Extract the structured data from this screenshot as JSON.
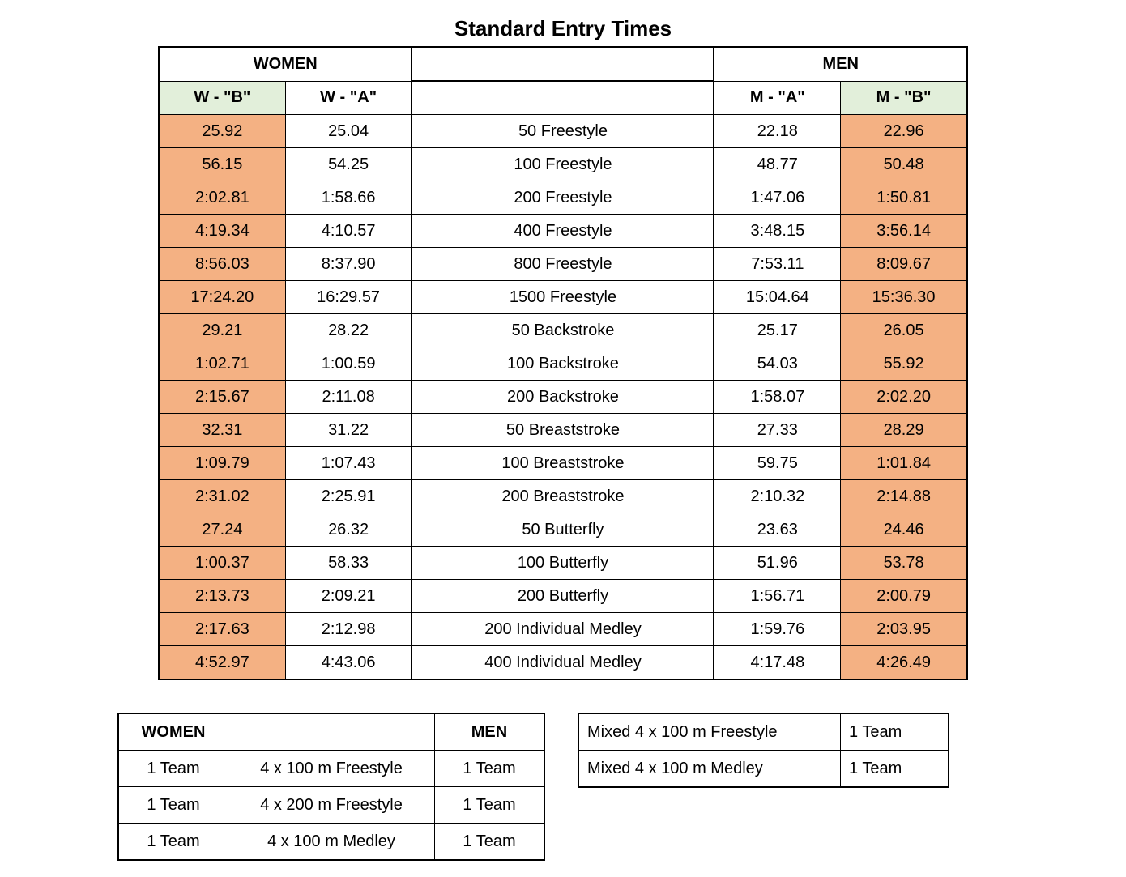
{
  "title": "Standard Entry Times",
  "headers": {
    "women": "WOMEN",
    "men": "MEN",
    "wb": "W - \"B\"",
    "wa": "W - \"A\"",
    "ma": "M - \"A\"",
    "mb": "M - \"B\""
  },
  "rows": [
    {
      "wb": "25.92",
      "wa": "25.04",
      "event": "50 Freestyle",
      "ma": "22.18",
      "mb": "22.96"
    },
    {
      "wb": "56.15",
      "wa": "54.25",
      "event": "100 Freestyle",
      "ma": "48.77",
      "mb": "50.48"
    },
    {
      "wb": "2:02.81",
      "wa": "1:58.66",
      "event": "200 Freestyle",
      "ma": "1:47.06",
      "mb": "1:50.81"
    },
    {
      "wb": "4:19.34",
      "wa": "4:10.57",
      "event": "400 Freestyle",
      "ma": "3:48.15",
      "mb": "3:56.14"
    },
    {
      "wb": "8:56.03",
      "wa": "8:37.90",
      "event": "800 Freestyle",
      "ma": "7:53.11",
      "mb": "8:09.67"
    },
    {
      "wb": "17:24.20",
      "wa": "16:29.57",
      "event": "1500 Freestyle",
      "ma": "15:04.64",
      "mb": "15:36.30"
    },
    {
      "wb": "29.21",
      "wa": "28.22",
      "event": "50 Backstroke",
      "ma": "25.17",
      "mb": "26.05"
    },
    {
      "wb": "1:02.71",
      "wa": "1:00.59",
      "event": "100 Backstroke",
      "ma": "54.03",
      "mb": "55.92"
    },
    {
      "wb": "2:15.67",
      "wa": "2:11.08",
      "event": "200 Backstroke",
      "ma": "1:58.07",
      "mb": "2:02.20"
    },
    {
      "wb": "32.31",
      "wa": "31.22",
      "event": "50 Breaststroke",
      "ma": "27.33",
      "mb": "28.29"
    },
    {
      "wb": "1:09.79",
      "wa": "1:07.43",
      "event": "100 Breaststroke",
      "ma": "59.75",
      "mb": "1:01.84"
    },
    {
      "wb": "2:31.02",
      "wa": "2:25.91",
      "event": "200 Breaststroke",
      "ma": "2:10.32",
      "mb": "2:14.88"
    },
    {
      "wb": "27.24",
      "wa": "26.32",
      "event": "50 Butterfly",
      "ma": "23.63",
      "mb": "24.46"
    },
    {
      "wb": "1:00.37",
      "wa": "58.33",
      "event": "100 Butterfly",
      "ma": "51.96",
      "mb": "53.78"
    },
    {
      "wb": "2:13.73",
      "wa": "2:09.21",
      "event": "200 Butterfly",
      "ma": "1:56.71",
      "mb": "2:00.79"
    },
    {
      "wb": "2:17.63",
      "wa": "2:12.98",
      "event": "200 Individual Medley",
      "ma": "1:59.76",
      "mb": "2:03.95"
    },
    {
      "wb": "4:52.97",
      "wa": "4:43.06",
      "event": "400 Individual Medley",
      "ma": "4:17.48",
      "mb": "4:26.49"
    }
  ],
  "relays": {
    "headers": {
      "women": "WOMEN",
      "men": "MEN"
    },
    "rows": [
      {
        "w": "1 Team",
        "event": "4 x 100 m Freestyle",
        "m": "1 Team"
      },
      {
        "w": "1 Team",
        "event": "4 x 200 m Freestyle",
        "m": "1 Team"
      },
      {
        "w": "1 Team",
        "event": "4 x 100 m Medley",
        "m": "1 Team"
      }
    ]
  },
  "mixed": {
    "rows": [
      {
        "event": "Mixed 4 x 100 m Freestyle",
        "team": "1 Team"
      },
      {
        "event": "Mixed 4 x 100 m Medley",
        "team": "1 Team"
      }
    ]
  },
  "style": {
    "b_cell_color": "#f4b183",
    "b_header_color": "#e2efda",
    "font_family": "Arial",
    "title_fontsize": 26,
    "cell_fontsize": 20
  }
}
